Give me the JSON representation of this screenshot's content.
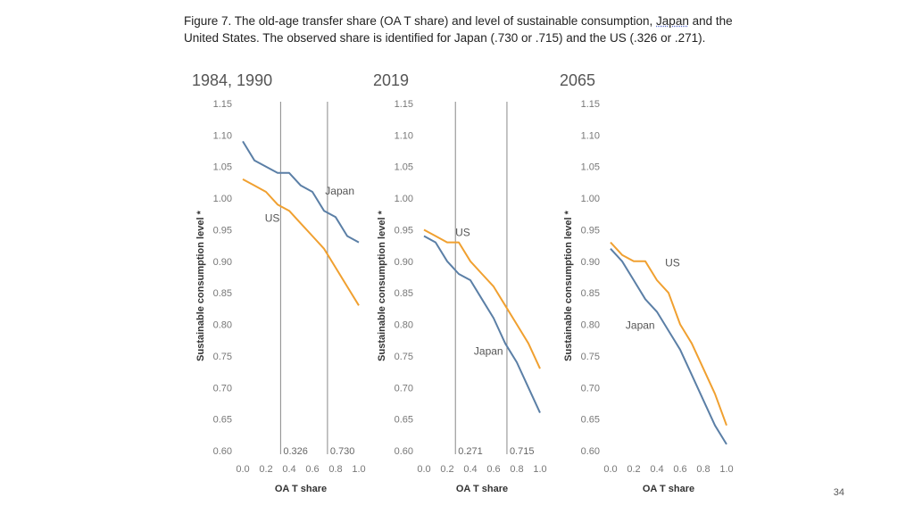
{
  "caption": {
    "line1_pre": "Figure 7.  The old-age transfer share (OA T share) and level of sustainable consumption, ",
    "line1_japan": "Japan",
    "line1_post": " and the",
    "line2": "United States.  The observed share is identified for Japan (.730 or .715) and the US (.326 or .271)."
  },
  "page_number": "34",
  "colors": {
    "japan": "#5b7fa6",
    "us": "#f0a030",
    "refline": "#888888"
  },
  "chart_data": [
    {
      "type": "line",
      "title": "1984, 1990",
      "xlabel": "OA T share",
      "ylabel": "Sustainable consumption level",
      "ylabel_mark": "*",
      "xlim": [
        0.0,
        1.0
      ],
      "ylim": [
        0.6,
        1.15
      ],
      "xticks": [
        "0.0",
        "0.2",
        "0.4",
        "0.6",
        "0.8",
        "1.0"
      ],
      "yticks": [
        "0.60",
        "0.65",
        "0.70",
        "0.75",
        "0.80",
        "0.85",
        "0.90",
        "0.95",
        "1.00",
        "1.05",
        "1.10",
        "1.15"
      ],
      "x": [
        0.0,
        0.1,
        0.2,
        0.3,
        0.4,
        0.5,
        0.6,
        0.7,
        0.8,
        0.9,
        1.0
      ],
      "series": [
        {
          "name": "Japan",
          "values": [
            1.09,
            1.06,
            1.05,
            1.04,
            1.04,
            1.02,
            1.01,
            0.98,
            0.97,
            0.94,
            0.93
          ]
        },
        {
          "name": "US",
          "values": [
            1.03,
            1.02,
            1.01,
            0.99,
            0.98,
            0.96,
            0.94,
            0.92,
            0.89,
            0.86,
            0.83
          ]
        }
      ],
      "reference_lines": [
        {
          "x": 0.326,
          "label": "0.326"
        },
        {
          "x": 0.73,
          "label": "0.730"
        }
      ],
      "annotations": [
        {
          "text": "Japan",
          "x": 0.71,
          "y": 1.006
        },
        {
          "text": "US",
          "x": 0.19,
          "y": 0.963
        }
      ]
    },
    {
      "type": "line",
      "title": "2019",
      "xlabel": "OA T share",
      "ylabel": "Sustainable consumption level",
      "ylabel_mark": "*",
      "xlim": [
        0.0,
        1.0
      ],
      "ylim": [
        0.6,
        1.15
      ],
      "xticks": [
        "0.0",
        "0.2",
        "0.4",
        "0.6",
        "0.8",
        "1.0"
      ],
      "yticks": [
        "0.60",
        "0.65",
        "0.70",
        "0.75",
        "0.80",
        "0.85",
        "0.90",
        "0.95",
        "1.00",
        "1.05",
        "1.10",
        "1.15"
      ],
      "x": [
        0.0,
        0.1,
        0.2,
        0.3,
        0.4,
        0.5,
        0.6,
        0.7,
        0.8,
        0.9,
        1.0
      ],
      "series": [
        {
          "name": "Japan",
          "values": [
            0.94,
            0.93,
            0.9,
            0.88,
            0.87,
            0.84,
            0.81,
            0.77,
            0.74,
            0.7,
            0.66
          ]
        },
        {
          "name": "US",
          "values": [
            0.95,
            0.94,
            0.93,
            0.93,
            0.9,
            0.88,
            0.86,
            0.83,
            0.8,
            0.77,
            0.73
          ]
        }
      ],
      "reference_lines": [
        {
          "x": 0.271,
          "label": "0.271"
        },
        {
          "x": 0.715,
          "label": "0.715"
        }
      ],
      "annotations": [
        {
          "text": "US",
          "x": 0.27,
          "y": 0.94
        },
        {
          "text": "Japan",
          "x": 0.43,
          "y": 0.752
        }
      ]
    },
    {
      "type": "line",
      "title": "2065",
      "xlabel": "OA T share",
      "ylabel": "Sustainable consumption level",
      "ylabel_mark": "*",
      "xlim": [
        0.0,
        1.0
      ],
      "ylim": [
        0.6,
        1.15
      ],
      "xticks": [
        "0.0",
        "0.2",
        "0.4",
        "0.6",
        "0.8",
        "1.0"
      ],
      "yticks": [
        "0.60",
        "0.65",
        "0.70",
        "0.75",
        "0.80",
        "0.85",
        "0.90",
        "0.95",
        "1.00",
        "1.05",
        "1.10",
        "1.15"
      ],
      "x": [
        0.0,
        0.1,
        0.2,
        0.3,
        0.4,
        0.5,
        0.6,
        0.7,
        0.8,
        0.9,
        1.0
      ],
      "series": [
        {
          "name": "Japan",
          "values": [
            0.92,
            0.9,
            0.87,
            0.84,
            0.82,
            0.79,
            0.76,
            0.72,
            0.68,
            0.64,
            0.61
          ]
        },
        {
          "name": "US",
          "values": [
            0.93,
            0.91,
            0.9,
            0.9,
            0.87,
            0.85,
            0.8,
            0.77,
            0.73,
            0.69,
            0.64
          ]
        }
      ],
      "reference_lines": [],
      "annotations": [
        {
          "text": "US",
          "x": 0.47,
          "y": 0.892
        },
        {
          "text": "Japan",
          "x": 0.13,
          "y": 0.793
        }
      ]
    }
  ]
}
